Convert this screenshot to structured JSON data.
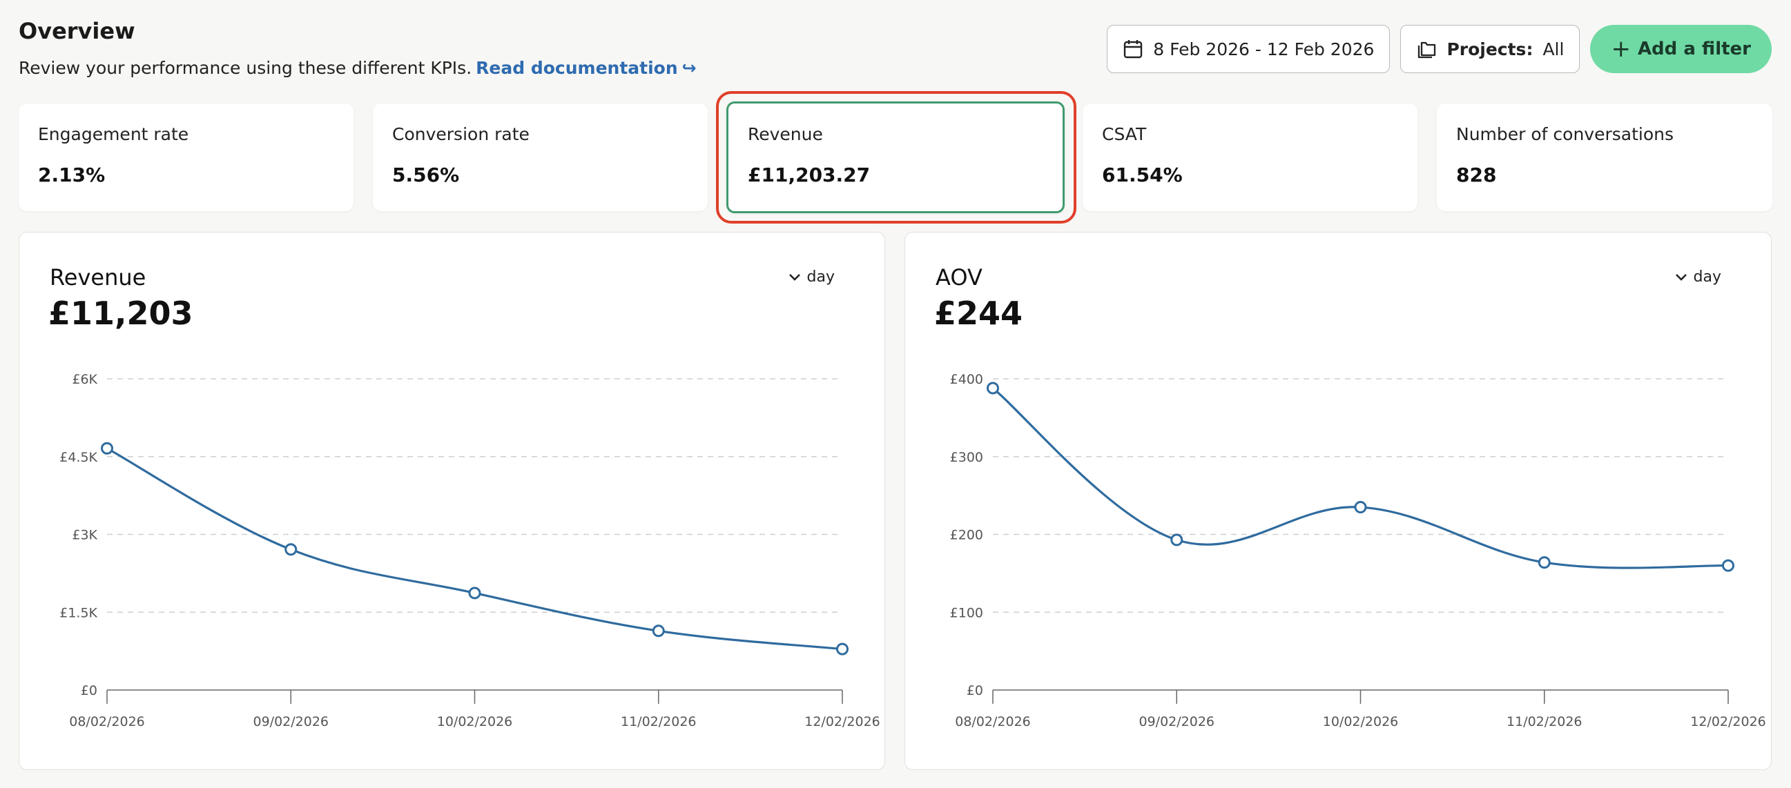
{
  "header": {
    "title": "Overview",
    "subtitle": "Review your performance using these different KPIs.",
    "doc_link": "Read documentation",
    "doc_link_arrow": "↪"
  },
  "toolbar": {
    "date_range": "8 Feb 2026 - 12 Feb 2026",
    "projects_label": "Projects:",
    "projects_value": "All",
    "add_filter_label": "Add a filter"
  },
  "kpis": [
    {
      "label": "Engagement rate",
      "value": "2.13%"
    },
    {
      "label": "Conversion rate",
      "value": "5.56%"
    },
    {
      "label": "Revenue",
      "value": "£11,203.27",
      "selected": true
    },
    {
      "label": "CSAT",
      "value": "61.54%"
    },
    {
      "label": "Number of conversations",
      "value": "828"
    }
  ],
  "colors": {
    "accent_green": "#6fdaa4",
    "selected_border": "#3f9a6e",
    "highlight_ring": "#e0402a",
    "series_line": "#2f6b9e",
    "link": "#2f6bb0"
  },
  "charts": [
    {
      "title": "Revenue",
      "total": "£11,203",
      "granularity": "day"
    },
    {
      "title": "AOV",
      "total": "£244",
      "granularity": "day"
    }
  ],
  "chart_data": [
    {
      "type": "line",
      "title": "Revenue",
      "x": [
        "08/02/2026",
        "09/02/2026",
        "10/02/2026",
        "11/02/2026",
        "12/02/2026"
      ],
      "series": [
        {
          "values": [
            4660,
            2710,
            1870,
            1140,
            790
          ]
        }
      ],
      "ylim": [
        0,
        6000
      ],
      "yticks": [
        0,
        1500,
        3000,
        4500,
        6000
      ],
      "ytick_labels": [
        "£0",
        "£1.5K",
        "£3K",
        "£4.5K",
        "£6K"
      ],
      "grid": true
    },
    {
      "type": "line",
      "title": "AOV",
      "x": [
        "08/02/2026",
        "09/02/2026",
        "10/02/2026",
        "11/02/2026",
        "12/02/2026"
      ],
      "series": [
        {
          "values": [
            388,
            193,
            235,
            164,
            160
          ]
        }
      ],
      "ylim": [
        0,
        400
      ],
      "yticks": [
        0,
        100,
        200,
        300,
        400
      ],
      "ytick_labels": [
        "£0",
        "£100",
        "£200",
        "£300",
        "£400"
      ],
      "grid": true
    }
  ]
}
